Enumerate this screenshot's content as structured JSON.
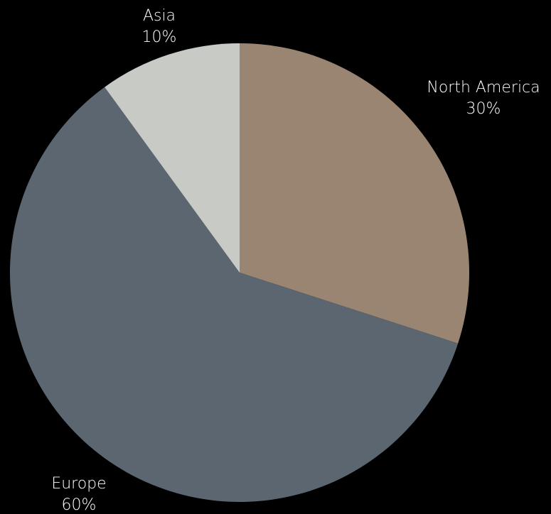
{
  "chart_data": {
    "type": "pie",
    "title": "",
    "start_angle_deg": 0,
    "direction": "clockwise",
    "slices": [
      {
        "label": "North America",
        "value": 30,
        "value_label": "30%",
        "color": "#9a8573"
      },
      {
        "label": "Europe",
        "value": 60,
        "value_label": "60%",
        "color": "#5b6670"
      },
      {
        "label": "Asia",
        "value": 10,
        "value_label": "10%",
        "color": "#c8cac6"
      }
    ],
    "legend": "none",
    "labels_position": "outside"
  }
}
